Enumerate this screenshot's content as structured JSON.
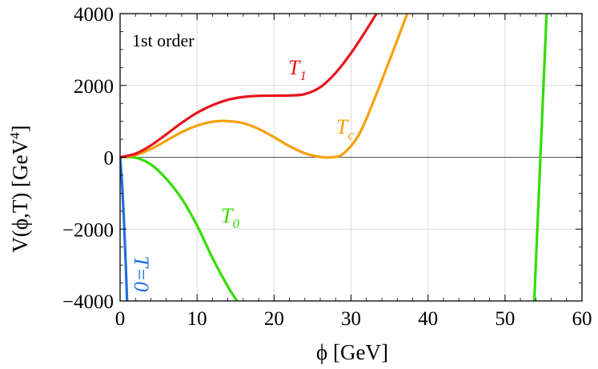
{
  "chart_data": {
    "type": "line",
    "annotation": "1st order",
    "xlabel": "ϕ [GeV]",
    "ylabel_main": "V(ϕ,T)  [GeV",
    "ylabel_exp": "4",
    "ylabel_close": "]",
    "xlim": [
      0,
      60
    ],
    "ylim": [
      -4000,
      4000
    ],
    "xticks": [
      0,
      10,
      20,
      30,
      40,
      50,
      60
    ],
    "yticks": [
      -4000,
      -2000,
      0,
      2000,
      4000
    ],
    "ytick_labels": [
      "−4000",
      "−2000",
      "0",
      "2000",
      "4000"
    ],
    "grid": true,
    "series": [
      {
        "name": "T=0",
        "color": "#1f6fe0",
        "label_main": "T=0",
        "label_sub": "",
        "x": [
          0,
          0.25,
          0.5,
          0.75,
          1.0
        ],
        "y": [
          0,
          -700,
          -1750,
          -3050,
          -4600
        ]
      },
      {
        "name": "T0",
        "color": "#33dd00",
        "label_main": "T",
        "label_sub": "0",
        "x": [
          0,
          2,
          4,
          6,
          8,
          10,
          12,
          14,
          15.2
        ],
        "y": [
          0,
          -10,
          -200,
          -600,
          -1150,
          -1900,
          -2800,
          -3600,
          -4000
        ],
        "x2": [
          53.8,
          54.2,
          54.6,
          55.0,
          55.4
        ],
        "y2": [
          -4000,
          -2000,
          0,
          2000,
          4000
        ]
      },
      {
        "name": "Tc",
        "color": "#f5a00a",
        "label_main": "T",
        "label_sub": "c",
        "x": [
          0,
          2,
          4,
          6,
          8,
          10,
          12,
          13.8,
          16,
          18,
          20,
          22,
          24,
          26,
          27.5,
          29,
          31,
          33,
          35,
          37.3
        ],
        "y": [
          0,
          60,
          230,
          460,
          700,
          880,
          990,
          1010,
          950,
          790,
          560,
          310,
          110,
          10,
          0,
          100,
          620,
          1600,
          2700,
          4000
        ]
      },
      {
        "name": "T1",
        "color": "#e8141c",
        "label_main": "T",
        "label_sub": "1",
        "x": [
          0,
          2,
          4,
          6,
          8,
          10,
          12,
          14,
          16,
          18,
          20,
          22,
          24,
          26,
          28,
          30,
          32,
          33.3
        ],
        "y": [
          0,
          100,
          330,
          640,
          960,
          1240,
          1450,
          1600,
          1680,
          1710,
          1715,
          1720,
          1760,
          1950,
          2350,
          2900,
          3550,
          4000
        ]
      }
    ]
  }
}
